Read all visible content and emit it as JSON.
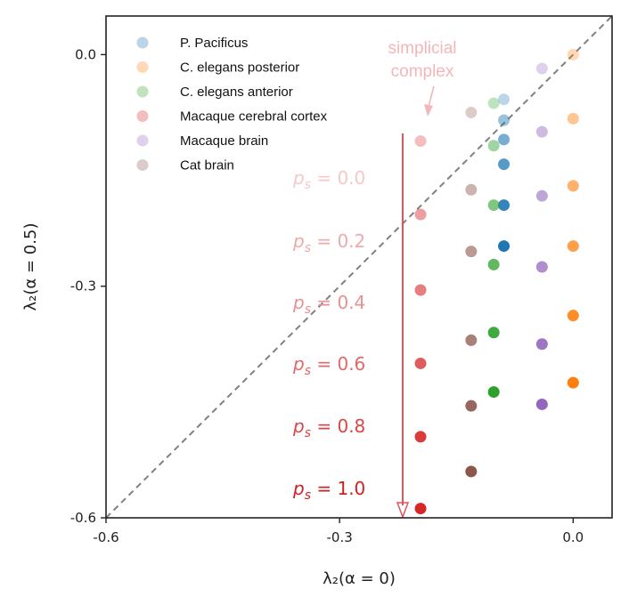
{
  "chart_data": {
    "type": "scatter",
    "xlabel": "λ₂(α = 0)",
    "ylabel": "λ₂(α = 0.5)",
    "xlim": [
      -0.6,
      0.05
    ],
    "ylim": [
      -0.6,
      0.05
    ],
    "xticks": [
      -0.6,
      -0.3,
      0.0
    ],
    "xtick_labels": [
      "-0.6",
      "-0.3",
      "0.0"
    ],
    "yticks": [
      0.0,
      -0.3,
      -0.6
    ],
    "ytick_labels": [
      "0.0",
      "-0.3",
      "-0.6"
    ],
    "grid": false,
    "legend_position": "top-left",
    "diagonal": "y = x (dashed)",
    "alpha_levels": [
      0.3,
      0.45,
      0.6,
      0.75,
      0.9,
      1.0
    ],
    "series": [
      {
        "name": "P. Pacificus",
        "color": "#1f77b4",
        "points": [
          {
            "x": -0.089,
            "y": -0.058,
            "level": 0
          },
          {
            "x": -0.089,
            "y": -0.085,
            "level": 1
          },
          {
            "x": -0.089,
            "y": -0.11,
            "level": 2
          },
          {
            "x": -0.089,
            "y": -0.142,
            "level": 3
          },
          {
            "x": -0.089,
            "y": -0.195,
            "level": 4
          },
          {
            "x": -0.089,
            "y": -0.248,
            "level": 5
          }
        ]
      },
      {
        "name": "C. elegans posterior",
        "color": "#ff7f0e",
        "points": [
          {
            "x": 0.0,
            "y": 0.0,
            "level": 0
          },
          {
            "x": 0.0,
            "y": -0.083,
            "level": 1
          },
          {
            "x": 0.0,
            "y": -0.17,
            "level": 2
          },
          {
            "x": 0.0,
            "y": -0.248,
            "level": 3
          },
          {
            "x": 0.0,
            "y": -0.338,
            "level": 4
          },
          {
            "x": 0.0,
            "y": -0.425,
            "level": 5
          }
        ]
      },
      {
        "name": "C. elegans anterior",
        "color": "#2ca02c",
        "points": [
          {
            "x": -0.102,
            "y": -0.063,
            "level": 0
          },
          {
            "x": -0.102,
            "y": -0.118,
            "level": 1
          },
          {
            "x": -0.102,
            "y": -0.195,
            "level": 2
          },
          {
            "x": -0.102,
            "y": -0.272,
            "level": 3
          },
          {
            "x": -0.102,
            "y": -0.36,
            "level": 4
          },
          {
            "x": -0.102,
            "y": -0.437,
            "level": 5
          }
        ]
      },
      {
        "name": "Macaque cerebral cortex",
        "color": "#d62728",
        "points": [
          {
            "x": -0.196,
            "y": -0.112,
            "level": 0
          },
          {
            "x": -0.196,
            "y": -0.207,
            "level": 1
          },
          {
            "x": -0.196,
            "y": -0.305,
            "level": 2
          },
          {
            "x": -0.196,
            "y": -0.4,
            "level": 3
          },
          {
            "x": -0.196,
            "y": -0.495,
            "level": 4
          },
          {
            "x": -0.196,
            "y": -0.588,
            "level": 5
          }
        ]
      },
      {
        "name": "Macaque brain",
        "color": "#9467bd",
        "points": [
          {
            "x": -0.04,
            "y": -0.018,
            "level": 0
          },
          {
            "x": -0.04,
            "y": -0.1,
            "level": 1
          },
          {
            "x": -0.04,
            "y": -0.183,
            "level": 2
          },
          {
            "x": -0.04,
            "y": -0.275,
            "level": 3
          },
          {
            "x": -0.04,
            "y": -0.375,
            "level": 4
          },
          {
            "x": -0.04,
            "y": -0.453,
            "level": 5
          }
        ]
      },
      {
        "name": "Cat brain",
        "color": "#8c564b",
        "points": [
          {
            "x": -0.131,
            "y": -0.075,
            "level": 0
          },
          {
            "x": -0.131,
            "y": -0.175,
            "level": 1
          },
          {
            "x": -0.131,
            "y": -0.255,
            "level": 2
          },
          {
            "x": -0.131,
            "y": -0.37,
            "level": 3
          },
          {
            "x": -0.131,
            "y": -0.455,
            "level": 4
          },
          {
            "x": -0.131,
            "y": -0.54,
            "level": 5
          }
        ]
      }
    ],
    "annotations": {
      "simplicial": [
        "simplicial",
        "complex"
      ],
      "simplicial_color": "#f4b6b8",
      "arrow_color": "#e05558",
      "ps_labels": [
        {
          "label": "p_s = 0.0",
          "prefix": "p",
          "sub": "s",
          "suffix": " = 0.0",
          "color": "#f6c8c9"
        },
        {
          "label": "p_s = 0.2",
          "prefix": "p",
          "sub": "s",
          "suffix": " = 0.2",
          "color": "#eeaaab"
        },
        {
          "label": "p_s = 0.4",
          "prefix": "p",
          "sub": "s",
          "suffix": " = 0.4",
          "color": "#e89192"
        },
        {
          "label": "p_s = 0.6",
          "prefix": "p",
          "sub": "s",
          "suffix": " = 0.6",
          "color": "#e2696a"
        },
        {
          "label": "p_s = 0.8",
          "prefix": "p",
          "sub": "s",
          "suffix": " = 0.8",
          "color": "#db4546"
        },
        {
          "label": "p_s = 1.0",
          "prefix": "p",
          "sub": "s",
          "suffix": " = 1.0",
          "color": "#d11f22"
        }
      ]
    }
  }
}
